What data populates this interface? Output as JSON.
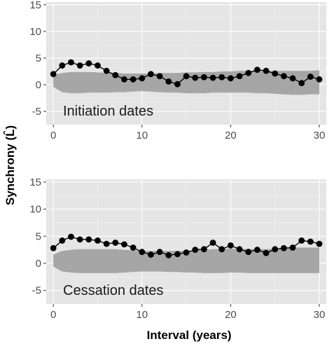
{
  "colors": {
    "panel_bg": "#e5e5e5",
    "grid_major": "#ffffff",
    "grid_minor": "#f2f2f2",
    "envelope": "#a6a6a6",
    "points": "#000000",
    "line": "#000000",
    "tick_text": "#4d4d4d"
  },
  "figure": {
    "ylabel": "Synchrony (L̂)",
    "xlabel": "Interval (years)"
  },
  "chart_data": [
    {
      "type": "line",
      "panel": "top",
      "annotation": "Initiation dates",
      "x": [
        0,
        1,
        2,
        3,
        4,
        5,
        6,
        7,
        8,
        9,
        10,
        11,
        12,
        13,
        14,
        15,
        16,
        17,
        18,
        19,
        20,
        21,
        22,
        23,
        24,
        25,
        26,
        27,
        28,
        29,
        30
      ],
      "series": [
        {
          "values": [
            2.0,
            3.6,
            4.2,
            3.6,
            4.0,
            3.6,
            2.6,
            1.8,
            1.0,
            1.0,
            1.2,
            2.0,
            1.6,
            0.6,
            0.1,
            1.6,
            1.3,
            1.4,
            1.3,
            1.4,
            1.2,
            1.6,
            2.2,
            2.8,
            2.6,
            2.1,
            1.6,
            1.2,
            0.3,
            1.5,
            1.0
          ]
        }
      ],
      "envelope": {
        "upper": [
          1.8,
          2.2,
          2.4,
          2.4,
          2.4,
          2.3,
          2.2,
          2.2,
          2.1,
          2.1,
          2.1,
          2.1,
          2.2,
          2.2,
          2.2,
          2.3,
          2.3,
          2.4,
          2.4,
          2.5,
          2.5,
          2.6,
          2.6,
          2.6,
          2.6,
          2.6,
          2.6,
          2.6,
          2.6,
          2.6,
          2.7
        ],
        "lower": [
          -0.4,
          -1.4,
          -1.6,
          -1.6,
          -1.5,
          -1.5,
          -1.5,
          -1.4,
          -1.4,
          -1.3,
          -1.2,
          -1.3,
          -1.4,
          -1.5,
          -1.5,
          -1.6,
          -1.6,
          -1.6,
          -1.5,
          -1.5,
          -1.5,
          -1.5,
          -1.5,
          -1.6,
          -1.6,
          -1.7,
          -1.8,
          -1.9,
          -1.9,
          -1.8,
          -1.8
        ]
      },
      "xlim": [
        -0.8,
        30.8
      ],
      "ylim": [
        -7.5,
        15.5
      ],
      "xticks": [
        "0",
        "10",
        "20",
        "30"
      ],
      "yticks": [
        "-5",
        "0",
        "5",
        "10",
        "15"
      ],
      "grid": true
    },
    {
      "type": "line",
      "panel": "bottom",
      "annotation": "Cessation dates",
      "x": [
        0,
        1,
        2,
        3,
        4,
        5,
        6,
        7,
        8,
        9,
        10,
        11,
        12,
        13,
        14,
        15,
        16,
        17,
        18,
        19,
        20,
        21,
        22,
        23,
        24,
        25,
        26,
        27,
        28,
        29,
        30
      ],
      "series": [
        {
          "values": [
            2.8,
            4.2,
            4.9,
            4.4,
            4.4,
            4.2,
            3.6,
            3.8,
            3.5,
            2.9,
            2.1,
            1.6,
            2.1,
            1.5,
            1.7,
            2.0,
            2.5,
            2.6,
            3.8,
            2.6,
            3.3,
            2.6,
            2.1,
            2.5,
            1.9,
            2.6,
            2.8,
            2.9,
            4.2,
            4.0,
            3.6
          ]
        }
      ],
      "envelope": {
        "upper": [
          1.6,
          2.3,
          2.5,
          2.6,
          2.6,
          2.6,
          2.6,
          2.6,
          2.5,
          2.4,
          2.3,
          2.3,
          2.3,
          2.3,
          2.3,
          2.3,
          2.4,
          2.5,
          2.6,
          2.7,
          2.7,
          2.7,
          2.6,
          2.6,
          2.6,
          2.7,
          2.8,
          2.9,
          2.9,
          2.9,
          2.9
        ],
        "lower": [
          -0.6,
          -1.5,
          -1.7,
          -1.8,
          -1.8,
          -1.8,
          -1.8,
          -1.8,
          -1.7,
          -1.6,
          -1.5,
          -1.5,
          -1.5,
          -1.6,
          -1.6,
          -1.7,
          -1.7,
          -1.8,
          -1.8,
          -1.8,
          -1.7,
          -1.7,
          -1.8,
          -1.8,
          -1.8,
          -1.8,
          -1.8,
          -1.8,
          -1.8,
          -1.8,
          -1.8
        ]
      },
      "xlim": [
        -0.8,
        30.8
      ],
      "ylim": [
        -7.5,
        15.5
      ],
      "xticks": [
        "0",
        "10",
        "20",
        "30"
      ],
      "yticks": [
        "-5",
        "0",
        "5",
        "10",
        "15"
      ],
      "grid": true
    }
  ]
}
